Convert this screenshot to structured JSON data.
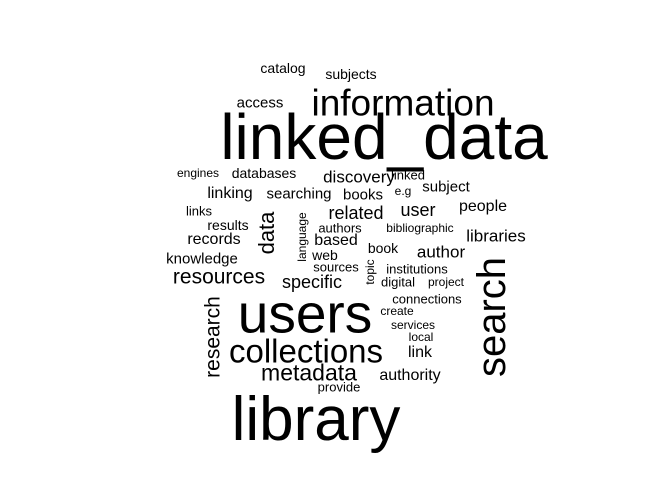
{
  "words": [
    {
      "text": "linked_data",
      "weight": 64
    },
    {
      "text": "library",
      "weight": 62
    },
    {
      "text": "users",
      "weight": 55
    },
    {
      "text": "search",
      "weight": 40
    },
    {
      "text": "information",
      "weight": 37
    },
    {
      "text": "collections",
      "weight": 33
    },
    {
      "text": "metadata",
      "weight": 23
    },
    {
      "text": "data",
      "weight": 22
    },
    {
      "text": "research",
      "weight": 21
    },
    {
      "text": "resources",
      "weight": 21
    },
    {
      "text": "specific",
      "weight": 18
    },
    {
      "text": "user",
      "weight": 18
    },
    {
      "text": "related",
      "weight": 18
    },
    {
      "text": "discovery",
      "weight": 17
    },
    {
      "text": "author",
      "weight": 17
    },
    {
      "text": "libraries",
      "weight": 17
    },
    {
      "text": "records",
      "weight": 16
    },
    {
      "text": "linking",
      "weight": 16
    },
    {
      "text": "authority",
      "weight": 16
    },
    {
      "text": "link",
      "weight": 16
    },
    {
      "text": "based",
      "weight": 16
    },
    {
      "text": "people",
      "weight": 16
    },
    {
      "text": "access",
      "weight": 15
    },
    {
      "text": "subject",
      "weight": 15
    },
    {
      "text": "books",
      "weight": 15
    },
    {
      "text": "knowledge",
      "weight": 15
    },
    {
      "text": "searching",
      "weight": 15
    },
    {
      "text": "catalog",
      "weight": 14
    },
    {
      "text": "subjects",
      "weight": 14
    },
    {
      "text": "web",
      "weight": 14
    },
    {
      "text": "book",
      "weight": 14
    },
    {
      "text": "databases",
      "weight": 14
    },
    {
      "text": "results",
      "weight": 14
    },
    {
      "text": "linked",
      "weight": 13
    },
    {
      "text": "links",
      "weight": 13
    },
    {
      "text": "connections",
      "weight": 13
    },
    {
      "text": "institutions",
      "weight": 13
    },
    {
      "text": "digital",
      "weight": 13
    },
    {
      "text": "authors",
      "weight": 13
    },
    {
      "text": "sources",
      "weight": 13
    },
    {
      "text": "provide",
      "weight": 13
    },
    {
      "text": "services",
      "weight": 12
    },
    {
      "text": "local",
      "weight": 12
    },
    {
      "text": "project",
      "weight": 12
    },
    {
      "text": "engines",
      "weight": 12
    },
    {
      "text": "e.g",
      "weight": 12
    },
    {
      "text": "create",
      "weight": 12
    },
    {
      "text": "bibliographic",
      "weight": 12
    },
    {
      "text": "language",
      "weight": 12
    },
    {
      "text": "topic",
      "weight": 12
    }
  ]
}
